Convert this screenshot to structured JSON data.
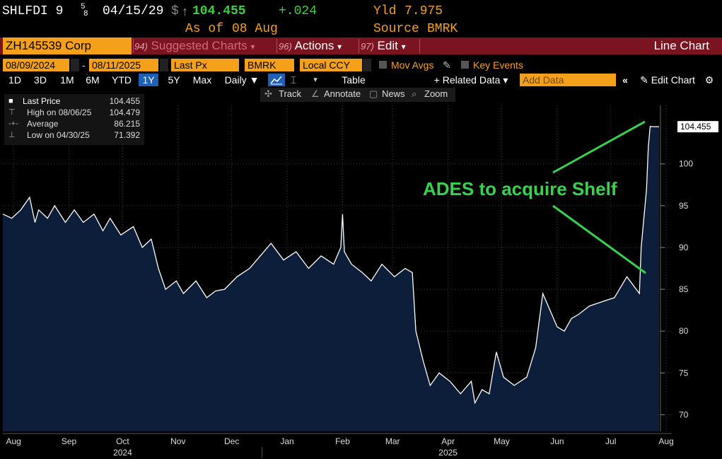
{
  "header": {
    "ticker": "SHLFDI 9",
    "coupon_frac_num": "5",
    "coupon_frac_den": "8",
    "maturity": "04/15/29",
    "currency_symbol": "$",
    "up_arrow": "↑",
    "price": "104.455",
    "change": "+.024",
    "as_of_label": "As of",
    "as_of_date": "08 Aug",
    "yield_label": "Yld",
    "yield_value": "7.975",
    "source_label": "Source",
    "source_value": "BMRK"
  },
  "menu": {
    "security": "ZH145539 Corp",
    "suggested_num": "94)",
    "suggested_label": "Suggested Charts",
    "actions_num": "96)",
    "actions_label": "Actions",
    "edit_num": "97)",
    "edit_label": "Edit",
    "dropdown_glyph": "▾",
    "chart_type": "Line Chart"
  },
  "controls": {
    "start_date": "08/09/2024",
    "dash": "-",
    "end_date": "08/11/2025",
    "field": "Last Px",
    "source": "BMRK",
    "currency": "Local CCY",
    "mov_avgs": "Mov Avgs",
    "key_events": "Key Events"
  },
  "range": {
    "buttons": [
      "1D",
      "3D",
      "1M",
      "6M",
      "YTD",
      "1Y",
      "5Y",
      "Max"
    ],
    "selected": "1Y",
    "frequency": "Daily ▼",
    "table": "Table",
    "related": "+ Related Data ▾",
    "add_data_placeholder": "Add Data",
    "edit_chart": "Edit Chart",
    "collapse_glyph": "«",
    "gear_glyph": "⚙"
  },
  "tools": {
    "track": "Track",
    "annotate": "Annotate",
    "news": "News",
    "zoom": "Zoom"
  },
  "legend": {
    "items": [
      {
        "symbol": "■",
        "label": "Last Price",
        "value": "104.455"
      },
      {
        "symbol": "⊤",
        "label": "High on 08/06/25",
        "value": "104.479"
      },
      {
        "symbol": "-+-",
        "label": "Average",
        "value": "86.215"
      },
      {
        "symbol": "⊥",
        "label": "Low on 04/30/25",
        "value": "71.392"
      }
    ]
  },
  "colors": {
    "background": "#000000",
    "area_fill": "#0d1e3a",
    "line": "#ffffff",
    "header_green": "#3fcf3f",
    "header_orange": "#f5a01a",
    "menu_red": "#7a1420",
    "annotation_green": "#37d34e",
    "selected_blue": "#1f5fb5"
  },
  "chart_data": {
    "type": "area",
    "ylim": [
      68,
      107
    ],
    "yticks": [
      70,
      75,
      80,
      85,
      90,
      95,
      100
    ],
    "last_value_label": "104.455",
    "annotation": "ADES to acquire Shelf",
    "grid": true,
    "x_month_labels": [
      "Aug",
      "Sep",
      "Oct",
      "Nov",
      "Dec",
      "Jan",
      "Feb",
      "Mar",
      "Apr",
      "May",
      "Jun",
      "Jul",
      "Aug"
    ],
    "x_month_dates": [
      "2024-08-15",
      "2024-09-15",
      "2024-10-15",
      "2024-11-15",
      "2024-12-15",
      "2025-01-15",
      "2025-02-15",
      "2025-03-15",
      "2025-04-15",
      "2025-05-15",
      "2025-06-15",
      "2025-07-15",
      "2025-08-15"
    ],
    "x_year_labels": [
      {
        "label": "2024",
        "date": "2024-10-15"
      },
      {
        "label": "2025",
        "date": "2025-04-15"
      }
    ],
    "series": [
      {
        "x": [
          "2024-08-09",
          "2024-08-14",
          "2024-08-19",
          "2024-08-24",
          "2024-08-27",
          "2024-08-29",
          "2024-09-03",
          "2024-09-07",
          "2024-09-13",
          "2024-09-18",
          "2024-09-23",
          "2024-09-29",
          "2024-10-04",
          "2024-10-08",
          "2024-10-14",
          "2024-10-21",
          "2024-10-26",
          "2024-10-31",
          "2024-11-04",
          "2024-11-08",
          "2024-11-14",
          "2024-11-18",
          "2024-11-25",
          "2024-12-01",
          "2024-12-06",
          "2024-12-11",
          "2024-12-18",
          "2024-12-25",
          "2024-12-31",
          "2025-01-06",
          "2025-01-13",
          "2025-01-20",
          "2025-01-27",
          "2025-02-03",
          "2025-02-10",
          "2025-02-14",
          "2025-02-15",
          "2025-02-16",
          "2025-02-20",
          "2025-02-26",
          "2025-03-03",
          "2025-03-09",
          "2025-03-16",
          "2025-03-22",
          "2025-03-26",
          "2025-03-28",
          "2025-04-01",
          "2025-04-05",
          "2025-04-10",
          "2025-04-16",
          "2025-04-22",
          "2025-04-28",
          "2025-04-30",
          "2025-05-04",
          "2025-05-08",
          "2025-05-12",
          "2025-05-16",
          "2025-05-22",
          "2025-05-29",
          "2025-06-03",
          "2025-06-07",
          "2025-06-11",
          "2025-06-15",
          "2025-06-19",
          "2025-06-23",
          "2025-06-27",
          "2025-07-03",
          "2025-07-10",
          "2025-07-17",
          "2025-07-24",
          "2025-07-31",
          "2025-08-01",
          "2025-08-04",
          "2025-08-05",
          "2025-08-06",
          "2025-08-08",
          "2025-08-11"
        ],
        "y": [
          94.0,
          93.5,
          94.5,
          96.0,
          93.0,
          94.5,
          93.5,
          95.0,
          93.0,
          94.5,
          93.0,
          94.0,
          92.0,
          93.5,
          91.5,
          92.5,
          90.0,
          91.0,
          87.5,
          85.0,
          86.0,
          84.5,
          86.0,
          84.0,
          84.8,
          85.0,
          86.5,
          87.5,
          89.0,
          90.5,
          88.5,
          89.5,
          87.5,
          89.0,
          88.0,
          90.0,
          94.0,
          89.5,
          88.0,
          87.0,
          86.0,
          88.0,
          86.5,
          87.5,
          87.0,
          80.0,
          76.5,
          73.5,
          75.0,
          74.0,
          72.5,
          74.0,
          71.4,
          73.0,
          72.5,
          77.5,
          74.5,
          73.5,
          74.5,
          78.0,
          84.5,
          82.5,
          80.5,
          80.0,
          81.5,
          82.0,
          83.0,
          83.5,
          84.0,
          86.5,
          84.5,
          90.0,
          97.0,
          102.0,
          104.479,
          104.455,
          104.455
        ]
      }
    ]
  }
}
